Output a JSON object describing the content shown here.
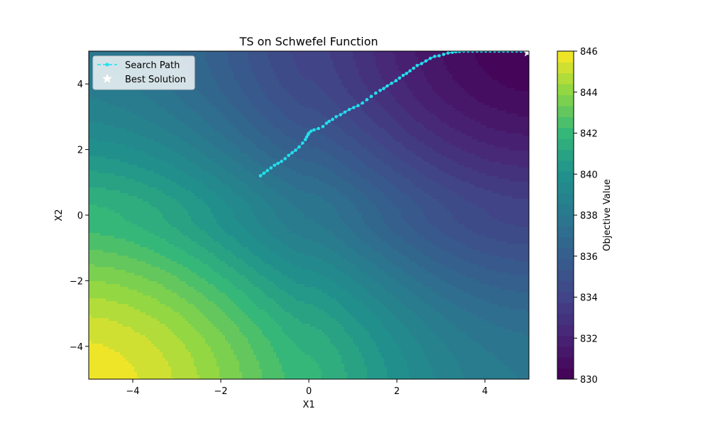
{
  "chart_data": {
    "type": "contour",
    "title": "TS on Schwefel Function",
    "xlabel": "X1",
    "ylabel": "X2",
    "xlim": [
      -5,
      5
    ],
    "ylim": [
      -5,
      5
    ],
    "x_ticks": [
      -4,
      -2,
      0,
      2,
      4
    ],
    "y_ticks": [
      -4,
      -2,
      0,
      2,
      4
    ],
    "x_tick_labels": [
      "−4",
      "−2",
      "0",
      "2",
      "4"
    ],
    "y_tick_labels": [
      "−4",
      "−2",
      "0",
      "2",
      "4"
    ],
    "grid": false,
    "colormap": "viridis",
    "colorbar": {
      "label": "Objective Value",
      "min": 830,
      "max": 846,
      "ticks": [
        830,
        832,
        834,
        836,
        838,
        840,
        842,
        844,
        846
      ],
      "tick_labels": [
        "830",
        "832",
        "834",
        "836",
        "838",
        "840",
        "842",
        "844",
        "846"
      ]
    },
    "contour_levels": 30,
    "surface": {
      "function": "Schwefel",
      "value_min": 830,
      "value_max": 846,
      "max_at": [
        -5,
        -5
      ],
      "min_at": [
        5,
        5
      ]
    },
    "legend": {
      "location": "upper-left",
      "entries": [
        "Search Path",
        "Best Solution"
      ]
    },
    "series": [
      {
        "name": "Search Path",
        "style": "dashed line with dot markers",
        "color": "#22e0ee",
        "x": [
          -1.1,
          -1.02,
          -0.94,
          -0.86,
          -0.78,
          -0.7,
          -0.62,
          -0.54,
          -0.46,
          -0.38,
          -0.3,
          -0.22,
          -0.14,
          -0.08,
          -0.05,
          -0.02,
          0.0,
          0.05,
          0.12,
          0.22,
          0.32,
          0.4,
          0.46,
          0.54,
          0.62,
          0.72,
          0.82,
          0.92,
          1.02,
          1.12,
          1.22,
          1.32,
          1.42,
          1.52,
          1.62,
          1.7,
          1.78,
          1.88,
          1.98,
          2.06,
          2.14,
          2.22,
          2.3,
          2.38,
          2.46,
          2.56,
          2.66,
          2.76,
          2.86,
          2.96,
          3.06,
          3.16,
          3.26,
          3.34,
          3.42,
          3.52,
          3.62,
          3.72,
          3.82,
          3.92,
          4.02,
          4.12,
          4.22,
          4.32,
          4.42,
          4.52,
          4.62,
          4.72,
          4.82,
          4.92,
          4.97
        ],
        "y": [
          1.2,
          1.28,
          1.36,
          1.44,
          1.52,
          1.58,
          1.64,
          1.72,
          1.82,
          1.9,
          1.98,
          2.08,
          2.2,
          2.3,
          2.38,
          2.45,
          2.5,
          2.56,
          2.6,
          2.64,
          2.7,
          2.8,
          2.86,
          2.92,
          3.0,
          3.06,
          3.14,
          3.22,
          3.28,
          3.34,
          3.42,
          3.52,
          3.62,
          3.72,
          3.8,
          3.86,
          3.94,
          4.02,
          4.1,
          4.18,
          4.26,
          4.32,
          4.4,
          4.48,
          4.56,
          4.62,
          4.7,
          4.78,
          4.84,
          4.86,
          4.9,
          4.94,
          4.96,
          4.98,
          4.99,
          5.0,
          5.0,
          5.0,
          5.0,
          5.0,
          5.0,
          5.0,
          5.0,
          5.0,
          5.0,
          5.0,
          5.0,
          5.0,
          5.0,
          5.0,
          4.96
        ]
      },
      {
        "name": "Best Solution",
        "style": "star marker",
        "color": "#ffffff",
        "x": [
          4.97
        ],
        "y": [
          4.96
        ]
      }
    ]
  }
}
